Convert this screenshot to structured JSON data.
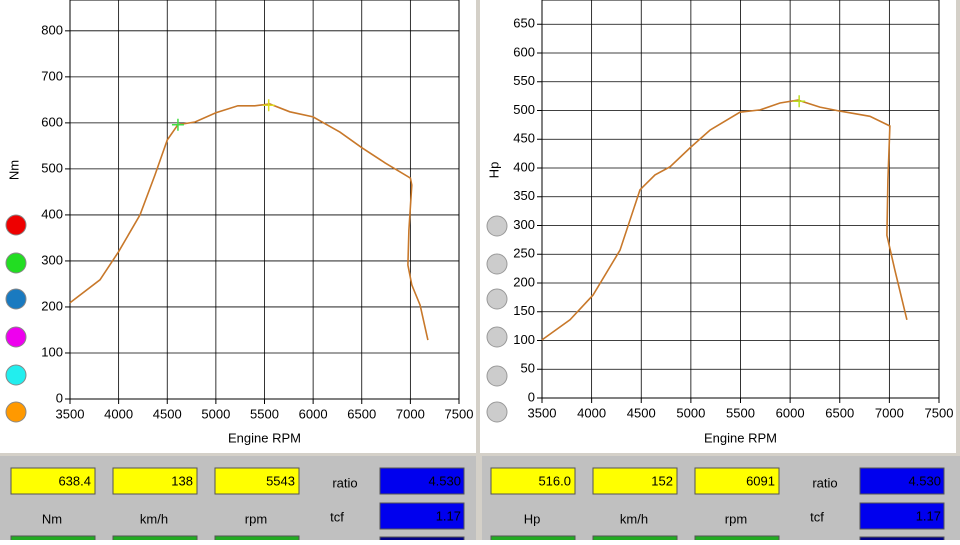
{
  "chart_data": [
    {
      "type": "line",
      "ylabel": "Nm",
      "xlabel": "Engine RPM",
      "color": "#c8782a",
      "grid": true,
      "x": [
        3500,
        3808,
        4000,
        4220,
        4374,
        4500,
        4610,
        4785,
        5000,
        5226,
        5400,
        5555,
        5760,
        6000,
        6275,
        6500,
        6740,
        7000,
        7015,
        6985,
        6975,
        7015,
        7100,
        7180
      ],
      "values": [
        209,
        259,
        320,
        400,
        487,
        563,
        596,
        602,
        622,
        637,
        637,
        641,
        624,
        613,
        580,
        546,
        513,
        480,
        465,
        367,
        291,
        248,
        204,
        128
      ],
      "markers": [
        {
          "x": 4610,
          "y": 596,
          "color": "#44dd44"
        },
        {
          "x": 5543,
          "y": 638.4,
          "color": "#dddd22"
        }
      ],
      "xlim": [
        3500,
        7500
      ],
      "xticks": [
        3500,
        4000,
        4500,
        5000,
        5500,
        6000,
        6500,
        7000,
        7500
      ],
      "ylim": [
        0,
        867
      ],
      "yticks": [
        0,
        100,
        200,
        300,
        400,
        500,
        600,
        700,
        800
      ]
    },
    {
      "type": "line",
      "ylabel": "Hp",
      "xlabel": "Engine RPM",
      "color": "#c8782a",
      "grid": true,
      "x": [
        3500,
        3782,
        4014,
        4286,
        4487,
        4639,
        4790,
        4991,
        5193,
        5495,
        5697,
        5898,
        6079,
        6300,
        6502,
        6804,
        7005,
        6985,
        6975,
        7055,
        7177
      ],
      "values": [
        101,
        136,
        179,
        257,
        362,
        388,
        402,
        435,
        466,
        497,
        501,
        513,
        518,
        506,
        499,
        490,
        473,
        379,
        283,
        223,
        136
      ],
      "markers": [
        {
          "x": 6091,
          "y": 516,
          "color": "#bbdd22"
        }
      ],
      "xlim": [
        3500,
        7500
      ],
      "xticks": [
        3500,
        4000,
        4500,
        5000,
        5500,
        6000,
        6500,
        7000,
        7500
      ],
      "ylim": [
        0,
        700
      ],
      "yticks": [
        0,
        50,
        100,
        150,
        200,
        250,
        300,
        350,
        400,
        450,
        500,
        550,
        600,
        650,
        700
      ]
    }
  ],
  "panels": [
    {
      "fields": [
        "638.4",
        "138",
        "5543"
      ],
      "units": [
        "Nm",
        "km/h",
        "rpm"
      ],
      "ratio_label": "ratio",
      "ratio": "4.530",
      "tcf_label": "tcf",
      "tcf": "1.17"
    },
    {
      "fields": [
        "516.0",
        "152",
        "6091"
      ],
      "units": [
        "Hp",
        "km/h",
        "rpm"
      ],
      "ratio_label": "ratio",
      "ratio": "4.530",
      "tcf_label": "tcf",
      "tcf": "1.17"
    }
  ]
}
